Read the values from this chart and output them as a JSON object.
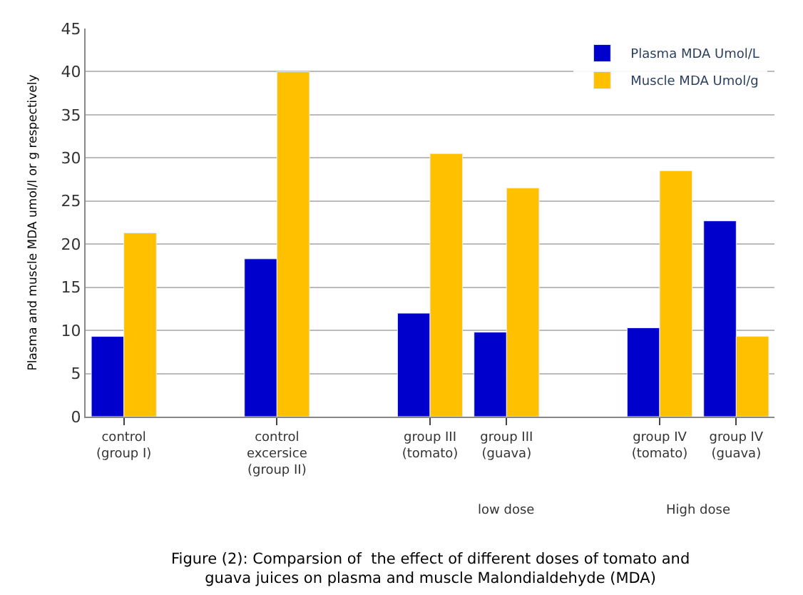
{
  "chart_data": {
    "type": "bar",
    "title": "Figure (2): Comparsion of  the effect of different doses of tomato and guava juices on plasma and muscle Malondialdehyde (MDA)",
    "ylabel": "Plasma and muscle MDA umol/l or g respectively",
    "categories": [
      "control (group I)",
      null,
      "control excersice (group II)",
      null,
      "group III (tomato)",
      "group III (guava)",
      null,
      "group IV (tomato)",
      "group IV (guava)"
    ],
    "series": [
      {
        "name": "Plasma MDA Umol/L",
        "color": "#0000cc",
        "values": [
          9.3,
          null,
          18.3,
          null,
          12,
          9.8,
          null,
          10.3,
          22.7
        ]
      },
      {
        "name": "Muscle MDA Umol/g",
        "color": "#ffc000",
        "values": [
          21.3,
          null,
          40,
          null,
          30.5,
          26.5,
          null,
          28.5,
          9.3
        ]
      }
    ],
    "annotations": [
      "low dose",
      "High dose"
    ],
    "ylim": [
      0,
      45
    ],
    "yticks": [
      0,
      5,
      10,
      15,
      20,
      25,
      30,
      35,
      40,
      45
    ],
    "grid": "y",
    "legend": "top right"
  }
}
